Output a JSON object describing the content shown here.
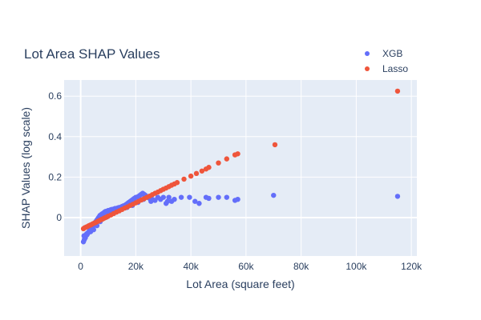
{
  "chart_data": {
    "type": "scatter",
    "title": "Lot Area SHAP Values",
    "xlabel": "Lot Area (square feet)",
    "ylabel": "SHAP Values (log scale)",
    "xlim": [
      -6000,
      122000
    ],
    "ylim": [
      -0.19,
      0.68
    ],
    "x_ticks": [
      0,
      20000,
      40000,
      60000,
      80000,
      100000,
      120000
    ],
    "x_tick_labels": [
      "0",
      "20k",
      "40k",
      "60k",
      "80k",
      "100k",
      "120k"
    ],
    "y_ticks": [
      0,
      0.2,
      0.4,
      0.6
    ],
    "y_tick_labels": [
      "0",
      "0.2",
      "0.4",
      "0.6"
    ],
    "grid": true,
    "legend_position": "top-right",
    "series": [
      {
        "name": "XGB",
        "color": "#636efa",
        "x": [
          1000,
          1300,
          1500,
          1700,
          1800,
          2000,
          2200,
          2500,
          2700,
          3000,
          3200,
          3500,
          3800,
          4000,
          4200,
          4500,
          4800,
          5000,
          5200,
          5500,
          5800,
          6000,
          6300,
          6500,
          6800,
          7000,
          7200,
          7500,
          7800,
          8000,
          8300,
          8500,
          8800,
          9000,
          9300,
          9600,
          10000,
          10400,
          10800,
          11200,
          11600,
          12000,
          12500,
          13000,
          13500,
          14000,
          14500,
          15000,
          15500,
          16000,
          16500,
          17000,
          17500,
          18000,
          18500,
          19000,
          19500,
          20000,
          20500,
          21000,
          21500,
          22000,
          22500,
          23000,
          23500,
          24000,
          25000,
          26000,
          27000,
          28000,
          29000,
          30000,
          31000,
          32000,
          33000,
          34000,
          36500,
          39500,
          41500,
          43000,
          45500,
          46500,
          50000,
          53000,
          56000,
          57000,
          70000,
          115000,
          1200,
          2300,
          3600,
          4700,
          5900,
          7100,
          8600,
          9800,
          11000,
          12800,
          14800,
          16800,
          18800,
          20800,
          22800,
          25500,
          31500
        ],
        "y": [
          -0.12,
          -0.11,
          -0.1,
          -0.1,
          -0.09,
          -0.085,
          -0.08,
          -0.08,
          -0.075,
          -0.07,
          -0.065,
          -0.06,
          -0.055,
          -0.05,
          -0.045,
          -0.04,
          -0.035,
          -0.03,
          -0.025,
          -0.02,
          -0.015,
          -0.01,
          -0.005,
          0,
          0.005,
          0.01,
          0.012,
          0.015,
          0.018,
          0.02,
          0.022,
          0.025,
          0.028,
          0.03,
          0.03,
          0.032,
          0.035,
          0.035,
          0.038,
          0.04,
          0.04,
          0.042,
          0.045,
          0.045,
          0.048,
          0.05,
          0.05,
          0.055,
          0.058,
          0.06,
          0.065,
          0.07,
          0.075,
          0.08,
          0.085,
          0.09,
          0.095,
          0.1,
          0.1,
          0.105,
          0.11,
          0.115,
          0.12,
          0.115,
          0.11,
          0.1,
          0.095,
          0.09,
          0.085,
          0.1,
          0.09,
          0.1,
          0.07,
          0.1,
          0.08,
          0.09,
          0.1,
          0.1,
          0.08,
          0.07,
          0.1,
          0.095,
          0.1,
          0.1,
          0.085,
          0.09,
          0.11,
          0.105,
          -0.09,
          -0.085,
          -0.07,
          -0.06,
          -0.04,
          -0.02,
          0.0,
          0.02,
          0.03,
          0.04,
          0.045,
          0.05,
          0.06,
          0.075,
          0.09,
          0.08,
          0.08
        ],
        "note_range": "dense cluster spanning roughly 1k to 24k"
      },
      {
        "name": "Lasso",
        "color": "#ef553b",
        "x": [
          1000,
          1500,
          2000,
          2500,
          3000,
          3500,
          4000,
          4500,
          5000,
          5500,
          6000,
          6500,
          7000,
          7500,
          8000,
          8500,
          9000,
          9500,
          10000,
          11000,
          12000,
          13000,
          14000,
          15000,
          16000,
          17000,
          18000,
          19000,
          20000,
          21000,
          22000,
          23000,
          24000,
          25000,
          26000,
          27000,
          28000,
          29000,
          30000,
          31000,
          32000,
          33000,
          34000,
          35000,
          37500,
          40000,
          42000,
          44000,
          45500,
          46500,
          50000,
          53000,
          56000,
          57000,
          70500,
          115000
        ],
        "y": [
          -0.055,
          -0.05,
          -0.047,
          -0.044,
          -0.04,
          -0.037,
          -0.034,
          -0.03,
          -0.027,
          -0.024,
          -0.02,
          -0.017,
          -0.013,
          -0.01,
          -0.007,
          -0.003,
          0.0,
          0.003,
          0.007,
          0.013,
          0.02,
          0.027,
          0.033,
          0.04,
          0.047,
          0.053,
          0.06,
          0.066,
          0.073,
          0.08,
          0.087,
          0.093,
          0.1,
          0.106,
          0.113,
          0.12,
          0.126,
          0.133,
          0.14,
          0.146,
          0.153,
          0.16,
          0.166,
          0.173,
          0.19,
          0.205,
          0.218,
          0.23,
          0.24,
          0.248,
          0.27,
          0.29,
          0.31,
          0.315,
          0.36,
          0.625
        ]
      }
    ]
  }
}
